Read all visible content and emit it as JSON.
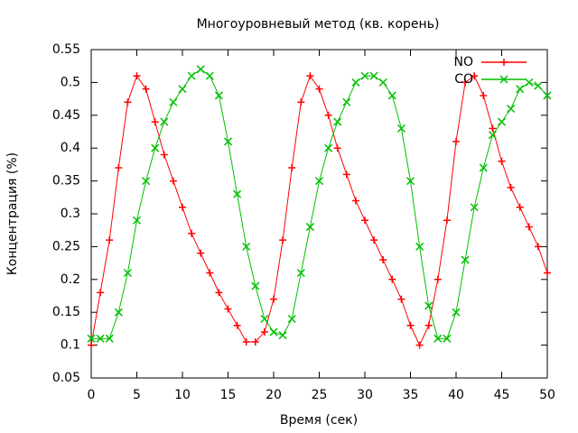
{
  "chart_data": {
    "type": "line",
    "title": "Многоуровневый метод (кв. корень)",
    "x_label": "Время (сек)",
    "y_label": "Концентрация (%)",
    "x": [
      0,
      1,
      2,
      3,
      4,
      5,
      6,
      7,
      8,
      9,
      10,
      11,
      12,
      13,
      14,
      15,
      16,
      17,
      18,
      19,
      20,
      21,
      22,
      23,
      24,
      25,
      26,
      27,
      28,
      29,
      30,
      31,
      32,
      33,
      34,
      35,
      36,
      37,
      38,
      39,
      40,
      41,
      42,
      43,
      44,
      45,
      46,
      47,
      48,
      49,
      50
    ],
    "series": [
      {
        "name": "NO",
        "color": "#ff0000",
        "marker": "plus",
        "values": [
          0.1,
          0.18,
          0.26,
          0.37,
          0.47,
          0.51,
          0.49,
          0.44,
          0.39,
          0.35,
          0.31,
          0.27,
          0.24,
          0.21,
          0.18,
          0.155,
          0.13,
          0.105,
          0.105,
          0.12,
          0.17,
          0.26,
          0.37,
          0.47,
          0.51,
          0.49,
          0.45,
          0.4,
          0.36,
          0.32,
          0.29,
          0.26,
          0.23,
          0.2,
          0.17,
          0.13,
          0.1,
          0.13,
          0.2,
          0.29,
          0.41,
          0.5,
          0.51,
          0.48,
          0.43,
          0.38,
          0.34,
          0.31,
          0.28,
          0.25,
          0.21
        ]
      },
      {
        "name": "CO",
        "color": "#00c000",
        "marker": "cross",
        "values": [
          0.11,
          0.11,
          0.11,
          0.15,
          0.21,
          0.29,
          0.35,
          0.4,
          0.44,
          0.47,
          0.49,
          0.51,
          0.52,
          0.51,
          0.48,
          0.41,
          0.33,
          0.25,
          0.19,
          0.14,
          0.12,
          0.115,
          0.14,
          0.21,
          0.28,
          0.35,
          0.4,
          0.44,
          0.47,
          0.5,
          0.51,
          0.51,
          0.5,
          0.48,
          0.43,
          0.35,
          0.25,
          0.16,
          0.11,
          0.11,
          0.15,
          0.23,
          0.31,
          0.37,
          0.42,
          0.44,
          0.46,
          0.49,
          0.5,
          0.495,
          0.48
        ]
      }
    ],
    "xlim": [
      0,
      50
    ],
    "xticks": [
      0,
      5,
      10,
      15,
      20,
      25,
      30,
      35,
      40,
      45,
      50
    ],
    "ylim": [
      0.05,
      0.55
    ],
    "yticks": [
      0.05,
      0.1,
      0.15,
      0.2,
      0.25,
      0.3,
      0.35,
      0.4,
      0.45,
      0.5,
      0.55
    ],
    "legend": "top-right"
  }
}
